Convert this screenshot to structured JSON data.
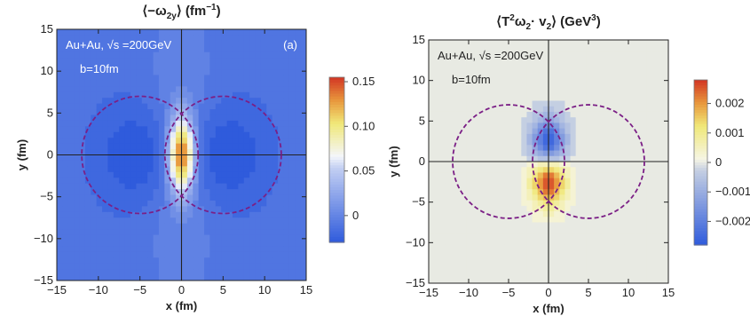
{
  "chart_data": [
    {
      "type": "heatmap",
      "title_parts": [
        "⟨−ω",
        "2",
        "y",
        "⟩ (fm",
        "−1",
        ")"
      ],
      "xlabel": "x (fm)",
      "ylabel": "y (fm)",
      "xlim": [
        -15,
        15
      ],
      "ylim": [
        -15,
        15
      ],
      "xticks": [
        "−15",
        "−10",
        "−5",
        "0",
        "5",
        "10",
        "15"
      ],
      "yticks": [
        "15",
        "10",
        "5",
        "0",
        "−5",
        "−10",
        "−15"
      ],
      "tick_values": [
        -15,
        -10,
        -5,
        0,
        5,
        10,
        15
      ],
      "annotation_system": "Au+Au, √s =200GeV",
      "annotation_b": "b=10fm",
      "panel_label": "(a)",
      "colorbar_ticks": [
        "0.15",
        "0.10",
        "0.05",
        "0"
      ],
      "colorbar_tick_values": [
        0.15,
        0.1,
        0.05,
        0
      ],
      "colorbar_range": [
        -0.03,
        0.155
      ],
      "value_range": [
        -0.03,
        0.155
      ],
      "field": {
        "kind": "positive_core_negative_lobes",
        "peak": 0.15,
        "minimum": -0.025,
        "lobe_centers_x": [
          -5,
          5
        ]
      },
      "nuclei": [
        {
          "center": [
            -5,
            0
          ],
          "radius": 7
        },
        {
          "center": [
            5,
            0
          ],
          "radius": 7
        }
      ],
      "colors": {
        "low": "#2f5bdc",
        "mid": "#f4f6fa",
        "high": "#d23524",
        "nucleus": "#7b1f86"
      }
    },
    {
      "type": "heatmap",
      "title_parts": [
        "⟨T",
        "2",
        "ω",
        "2",
        "· v",
        "2",
        "⟩ (GeV",
        "3",
        ")"
      ],
      "xlabel": "x (fm)",
      "ylabel": "y (fm)",
      "xlim": [
        -15,
        15
      ],
      "ylim": [
        -15,
        15
      ],
      "xticks": [
        "−15",
        "−10",
        "−5",
        "0",
        "5",
        "10",
        "15"
      ],
      "yticks": [
        "15",
        "10",
        "5",
        "0",
        "−5",
        "−10",
        "−15"
      ],
      "tick_values": [
        -15,
        -10,
        -5,
        0,
        5,
        10,
        15
      ],
      "annotation_system": "Au+Au, √s =200GeV",
      "annotation_b": "b=10fm",
      "colorbar_ticks": [
        "0.002",
        "0.001",
        "0",
        "−0.001",
        "−0.002"
      ],
      "colorbar_tick_values": [
        0.002,
        0.001,
        0,
        -0.001,
        -0.002
      ],
      "colorbar_range": [
        -0.0028,
        0.0028
      ],
      "value_range": [
        -0.0028,
        0.0028
      ],
      "field": {
        "kind": "dipole_y",
        "upper_sign": -1,
        "lower_sign": 1,
        "amplitude": 0.0027
      },
      "nuclei": [
        {
          "center": [
            -5,
            0
          ],
          "radius": 7
        },
        {
          "center": [
            5,
            0
          ],
          "radius": 7
        }
      ],
      "colors": {
        "low": "#2f5bdc",
        "mid": "#f6f5e4",
        "high": "#d23524",
        "nucleus": "#7b1f86"
      }
    }
  ]
}
